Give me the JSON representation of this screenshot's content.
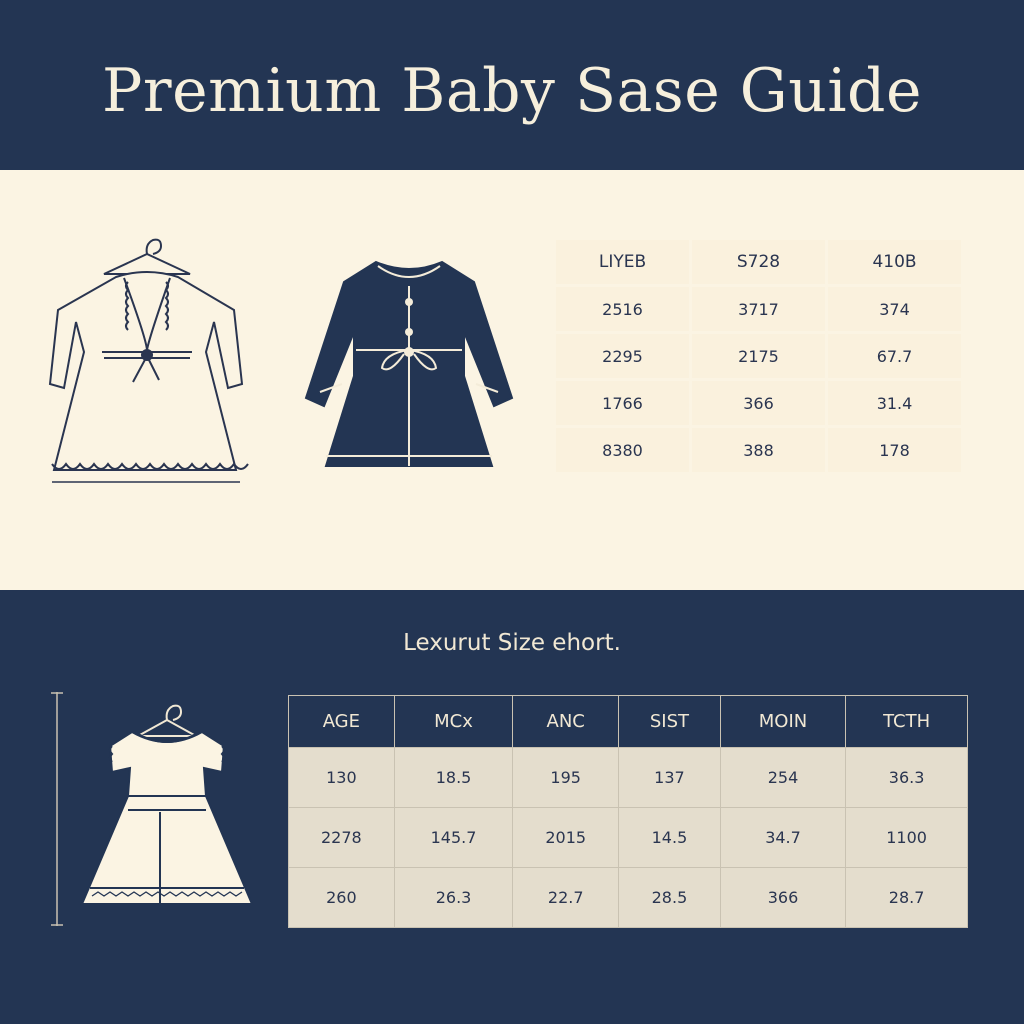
{
  "header": {
    "title": "Premium Baby Sase Guide"
  },
  "top_table": {
    "headers": [
      "LIYEB",
      "S728",
      "410B"
    ],
    "rows": [
      [
        "2516",
        "3717",
        "374"
      ],
      [
        "2295",
        "2175",
        "67.7"
      ],
      [
        "1766",
        "366",
        "31.4"
      ],
      [
        "8380",
        "388",
        "178"
      ]
    ]
  },
  "chart_section": {
    "subtitle": "Lexurut Size ehort."
  },
  "bottom_table": {
    "headers": [
      "AGE",
      "MCx",
      "ANC",
      "SIST",
      "MOIN",
      "TCTH"
    ],
    "rows": [
      [
        "130",
        "18.5",
        "195",
        "137",
        "254",
        "36.3"
      ],
      [
        "2278",
        "145.7",
        "2015",
        "14.5",
        "34.7",
        "1100"
      ],
      [
        "260",
        "26.3",
        "22.7",
        "28.5",
        "366",
        "28.7"
      ]
    ]
  },
  "colors": {
    "navy": "#233553",
    "cream": "#fbf4e3",
    "cell": "#e4ddcd",
    "ink": "#2a3550"
  },
  "icons": [
    "hanger-icon",
    "ruffle-dress-icon",
    "navy-coat-icon",
    "short-sleeve-dress-icon",
    "ruler-icon"
  ]
}
